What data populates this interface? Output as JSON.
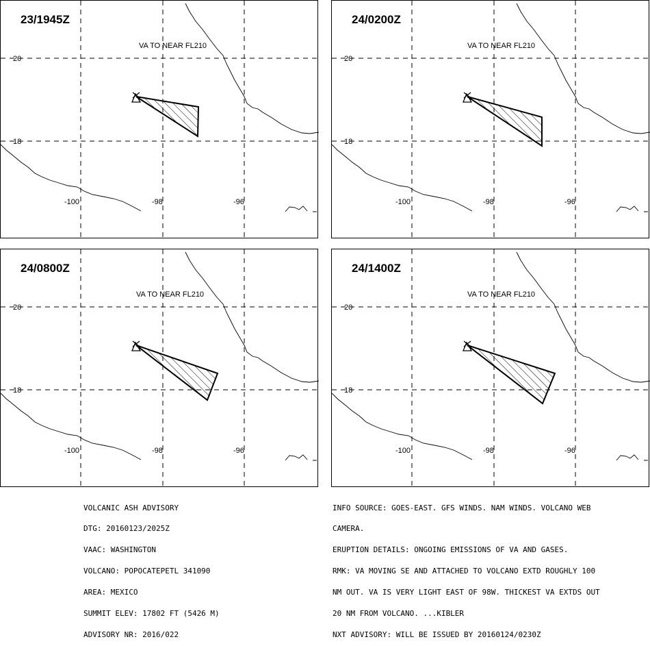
{
  "panels": [
    {
      "time": "23/1945Z",
      "va_label": "VA TO NEAR FL210"
    },
    {
      "time": "24/0200Z",
      "va_label": "VA TO NEAR FL210"
    },
    {
      "time": "24/0800Z",
      "va_label": "VA TO NEAR FL210"
    },
    {
      "time": "24/1400Z",
      "va_label": "VA TO NEAR FL210"
    }
  ],
  "grid": {
    "lat_labels": [
      "20",
      "18"
    ],
    "lon_labels": [
      "-100",
      "-98",
      "-96"
    ]
  },
  "advisory": {
    "lines": [
      "VOLCANIC ASH ADVISORY",
      "DTG: 20160123/2025Z",
      "VAAC: WASHINGTON",
      "VOLCANO: POPOCATEPETL 341090",
      "AREA: MEXICO",
      "SUMMIT ELEV: 17802 FT (5426 M)",
      "ADVISORY NR: 2016/022"
    ]
  },
  "info": {
    "lines": [
      "INFO SOURCE: GOES-EAST. GFS WINDS. NAM WINDS. VOLCANO WEB",
      "CAMERA.",
      "ERUPTION DETAILS: ONGOING EMISSIONS OF VA AND GASES.",
      "RMK: VA MOVING SE AND ATTACHED TO VOLCANO EXTD ROUGHLY 100",
      "NM OUT. VA IS VERY LIGHT EAST OF 98W. THICKEST VA EXTDS OUT",
      "20 NM FROM VOLCANO. ...KIBLER",
      "NXT ADVISORY: WILL BE ISSUED BY 20160124/0230Z"
    ]
  }
}
